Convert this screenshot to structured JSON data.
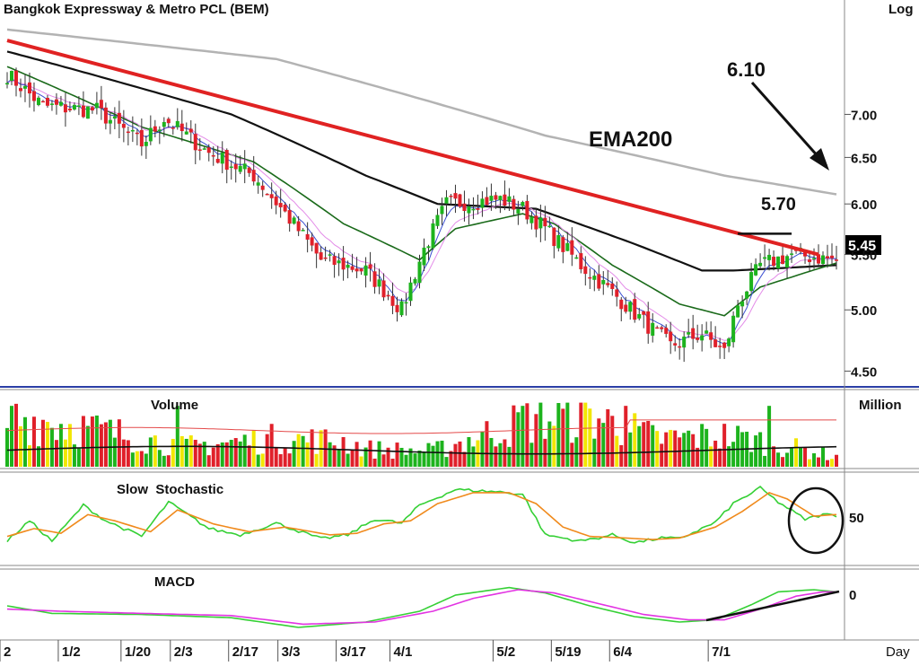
{
  "title": "Bangkok Expressway & Metro PCL (BEM)",
  "scale_label": "Log",
  "x_unit": "Day",
  "colors": {
    "up": "#1db31d",
    "down": "#e0202a",
    "neutral": "#f2e600",
    "ema200": "#b3b3b3",
    "ema50": "#111111",
    "ema20": "#1a6a1a",
    "ema10": "#e38be8",
    "ema5": "#3c4fd1",
    "trend": "#e02222",
    "vol_avg_long": "#111111",
    "vol_avg_short": "#e44a4a",
    "stoch_k": "#35d035",
    "stoch_d": "#f08a1c",
    "macd": "#35d035",
    "signal": "#e233e2",
    "divider": "#2b3fa6"
  },
  "annotations": {
    "ema200_label": "EMA200",
    "target_label": "6.10",
    "resistance_label": "5.70",
    "last_price": "5.45"
  },
  "chart_data": [
    {
      "type": "candlestick",
      "title": "Bangkok Expressway & Metro PCL (BEM)",
      "scale": "log",
      "ylim": [
        4.4,
        8.2
      ],
      "y_ticks": [
        "4.50",
        "5.00",
        "5.50",
        "6.00",
        "6.50",
        "7.00"
      ],
      "x_ticks": [
        "2",
        "1/2",
        "1/20",
        "2/3",
        "2/17",
        "3/3",
        "3/17",
        "4/1",
        "5/2",
        "5/19",
        "6/4",
        "7/1"
      ],
      "close_anchors": [
        [
          0,
          7.5
        ],
        [
          8,
          7.1
        ],
        [
          20,
          7.05
        ],
        [
          30,
          6.65
        ],
        [
          35,
          6.95
        ],
        [
          45,
          6.55
        ],
        [
          55,
          6.3
        ],
        [
          70,
          5.45
        ],
        [
          80,
          5.35
        ],
        [
          88,
          5.0
        ],
        [
          93,
          5.55
        ],
        [
          98,
          6.0
        ],
        [
          110,
          6.05
        ],
        [
          115,
          5.95
        ],
        [
          120,
          5.75
        ],
        [
          128,
          5.4
        ],
        [
          135,
          5.15
        ],
        [
          142,
          4.9
        ],
        [
          148,
          4.7
        ],
        [
          155,
          4.8
        ],
        [
          160,
          4.65
        ],
        [
          163,
          5.05
        ],
        [
          168,
          5.4
        ],
        [
          175,
          5.5
        ],
        [
          185,
          5.45
        ]
      ],
      "series": [
        {
          "name": "EMA200",
          "values": [
            [
              0,
              8.1
            ],
            [
              60,
              7.7
            ],
            [
              120,
              6.75
            ],
            [
              160,
              6.3
            ],
            [
              185,
              6.1
            ]
          ]
        },
        {
          "name": "EMA50",
          "values": [
            [
              0,
              7.8
            ],
            [
              50,
              7.0
            ],
            [
              80,
              6.3
            ],
            [
              96,
              6.0
            ],
            [
              118,
              5.95
            ],
            [
              140,
              5.6
            ],
            [
              155,
              5.35
            ],
            [
              162,
              5.35
            ],
            [
              185,
              5.4
            ]
          ]
        },
        {
          "name": "EMA20",
          "values": [
            [
              0,
              7.6
            ],
            [
              30,
              6.85
            ],
            [
              55,
              6.45
            ],
            [
              75,
              5.8
            ],
            [
              92,
              5.45
            ],
            [
              100,
              5.75
            ],
            [
              115,
              5.9
            ],
            [
              122,
              5.8
            ],
            [
              135,
              5.4
            ],
            [
              150,
              5.05
            ],
            [
              160,
              4.95
            ],
            [
              168,
              5.2
            ],
            [
              185,
              5.42
            ]
          ]
        }
      ],
      "annotations": [
        "EMA200",
        "6.10",
        "5.70",
        "5.45"
      ]
    },
    {
      "type": "bar",
      "title": "Volume",
      "unit": "Million",
      "bars": 186,
      "series": [
        {
          "name": "Volume",
          "values": [
            [
              0,
              0.55
            ],
            [
              1,
              0.95
            ],
            [
              8,
              0.9
            ],
            [
              40,
              0.4
            ],
            [
              60,
              0.55
            ],
            [
              75,
              0.5
            ],
            [
              80,
              0.35
            ],
            [
              95,
              0.3
            ],
            [
              116,
              0.9
            ],
            [
              130,
              1.0
            ],
            [
              145,
              0.55
            ],
            [
              160,
              0.6
            ],
            [
              168,
              0.5
            ],
            [
              185,
              0.2
            ]
          ]
        }
      ]
    },
    {
      "type": "line",
      "title": "Slow  Stochastic",
      "y_ticks": [
        "50"
      ],
      "ylim": [
        0,
        100
      ],
      "series": [
        {
          "name": "%K",
          "values": [
            [
              0,
              22
            ],
            [
              5,
              48
            ],
            [
              10,
              22
            ],
            [
              17,
              68
            ],
            [
              22,
              48
            ],
            [
              30,
              28
            ],
            [
              36,
              72
            ],
            [
              45,
              38
            ],
            [
              52,
              30
            ],
            [
              60,
              45
            ],
            [
              70,
              25
            ],
            [
              76,
              30
            ],
            [
              82,
              50
            ],
            [
              88,
              45
            ],
            [
              92,
              68
            ],
            [
              100,
              88
            ],
            [
              110,
              85
            ],
            [
              115,
              82
            ],
            [
              120,
              30
            ],
            [
              128,
              22
            ],
            [
              135,
              30
            ],
            [
              140,
              20
            ],
            [
              146,
              26
            ],
            [
              150,
              25
            ],
            [
              158,
              46
            ],
            [
              162,
              70
            ],
            [
              168,
              90
            ],
            [
              172,
              72
            ],
            [
              178,
              50
            ],
            [
              182,
              56
            ],
            [
              185,
              55
            ]
          ]
        },
        {
          "name": "%D",
          "values": [
            [
              0,
              28
            ],
            [
              6,
              38
            ],
            [
              12,
              32
            ],
            [
              18,
              56
            ],
            [
              24,
              48
            ],
            [
              32,
              34
            ],
            [
              38,
              62
            ],
            [
              46,
              44
            ],
            [
              54,
              34
            ],
            [
              62,
              40
            ],
            [
              72,
              30
            ],
            [
              78,
              32
            ],
            [
              84,
              44
            ],
            [
              90,
              48
            ],
            [
              96,
              70
            ],
            [
              104,
              84
            ],
            [
              112,
              84
            ],
            [
              118,
              70
            ],
            [
              124,
              40
            ],
            [
              130,
              28
            ],
            [
              138,
              26
            ],
            [
              144,
              24
            ],
            [
              150,
              26
            ],
            [
              158,
              40
            ],
            [
              164,
              60
            ],
            [
              170,
              84
            ],
            [
              174,
              76
            ],
            [
              180,
              54
            ],
            [
              185,
              56
            ]
          ]
        }
      ]
    },
    {
      "type": "line",
      "title": "MACD",
      "y_ticks": [
        "0"
      ],
      "series": [
        {
          "name": "MACD",
          "values": [
            [
              0,
              -0.05
            ],
            [
              10,
              -0.12
            ],
            [
              30,
              -0.13
            ],
            [
              50,
              -0.16
            ],
            [
              65,
              -0.25
            ],
            [
              80,
              -0.2
            ],
            [
              92,
              -0.1
            ],
            [
              100,
              0.05
            ],
            [
              112,
              0.12
            ],
            [
              120,
              0.07
            ],
            [
              130,
              -0.05
            ],
            [
              140,
              -0.15
            ],
            [
              150,
              -0.2
            ],
            [
              158,
              -0.18
            ],
            [
              166,
              -0.04
            ],
            [
              172,
              0.08
            ],
            [
              180,
              0.1
            ],
            [
              185,
              0.08
            ]
          ]
        },
        {
          "name": "Signal",
          "values": [
            [
              0,
              -0.08
            ],
            [
              12,
              -0.1
            ],
            [
              30,
              -0.12
            ],
            [
              50,
              -0.14
            ],
            [
              66,
              -0.22
            ],
            [
              82,
              -0.2
            ],
            [
              95,
              -0.1
            ],
            [
              104,
              0.02
            ],
            [
              114,
              0.1
            ],
            [
              122,
              0.07
            ],
            [
              132,
              -0.03
            ],
            [
              142,
              -0.13
            ],
            [
              152,
              -0.18
            ],
            [
              160,
              -0.18
            ],
            [
              168,
              -0.08
            ],
            [
              176,
              0.04
            ],
            [
              182,
              0.08
            ],
            [
              185,
              0.08
            ]
          ]
        }
      ]
    }
  ],
  "panels": {
    "volume_title": "Volume",
    "volume_unit": "Million",
    "stoch_title": "Slow  Stochastic",
    "stoch_tick": "50",
    "macd_title": "MACD",
    "macd_tick": "0"
  }
}
